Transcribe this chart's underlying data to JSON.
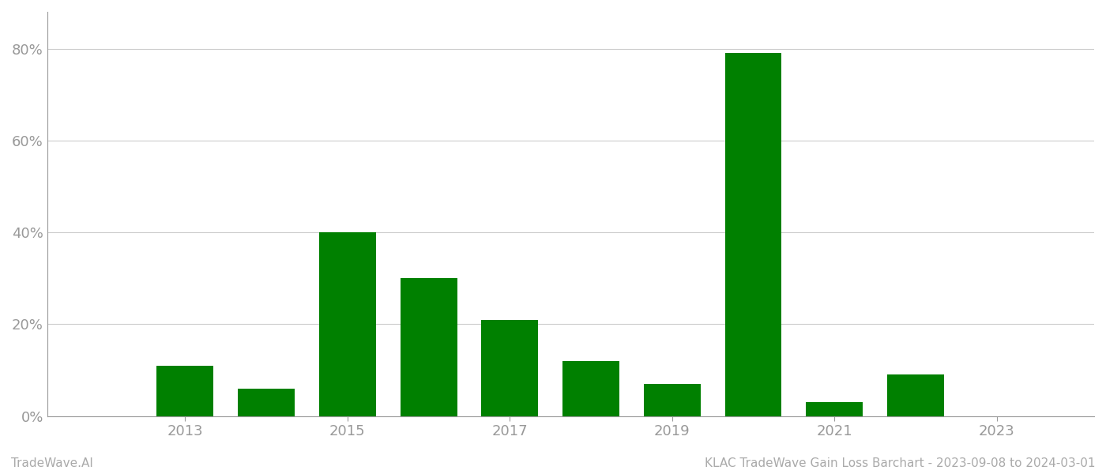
{
  "years": [
    2012,
    2013,
    2014,
    2015,
    2016,
    2017,
    2018,
    2019,
    2020,
    2021,
    2022,
    2023
  ],
  "values": [
    0.0,
    0.11,
    0.06,
    0.4,
    0.3,
    0.21,
    0.12,
    0.07,
    0.79,
    0.03,
    0.09,
    0.0
  ],
  "bar_color": "#008000",
  "bg_color": "#ffffff",
  "grid_color": "#cccccc",
  "axis_label_color": "#999999",
  "ytick_labels": [
    "0%",
    "20%",
    "40%",
    "60%",
    "80%"
  ],
  "ytick_values": [
    0.0,
    0.2,
    0.4,
    0.6,
    0.8
  ],
  "xtick_years": [
    2013,
    2015,
    2017,
    2019,
    2021,
    2023
  ],
  "ylim": [
    0,
    0.88
  ],
  "xlim_left": 2011.3,
  "xlim_right": 2024.2,
  "footer_left": "TradeWave.AI",
  "footer_right": "KLAC TradeWave Gain Loss Barchart - 2023-09-08 to 2024-03-01",
  "footer_color": "#aaaaaa",
  "footer_fontsize": 11,
  "tick_fontsize": 13,
  "bar_width": 0.7
}
